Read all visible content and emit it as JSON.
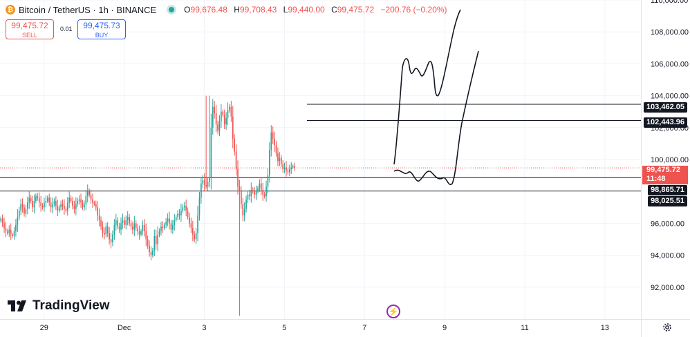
{
  "header": {
    "symbol": "Bitcoin / TetherUS · 1h · BINANCE",
    "ohlc": {
      "o_label": "O",
      "o": "99,676.48",
      "h_label": "H",
      "h": "99,708.43",
      "l_label": "L",
      "l": "99,440.00",
      "c_label": "C",
      "c": "99,475.72",
      "change": "−200.76 (−0.20%)"
    }
  },
  "trade": {
    "sell_price": "99,475.72",
    "sell_label": "SELL",
    "spread": "0.01",
    "buy_price": "99,475.73",
    "buy_label": "BUY"
  },
  "logo": "TradingView",
  "colors": {
    "up": "#26a69a",
    "down": "#ef5350",
    "accent": "#2962ff"
  },
  "current": {
    "price": "99,475.72",
    "countdown": "11:48"
  },
  "price_lines": [
    {
      "price": 103462.05,
      "label": "103,462.05"
    },
    {
      "price": 102443.96,
      "label": "102,443.96"
    },
    {
      "price": 98865.71,
      "label": "98,865.71"
    },
    {
      "price": 98025.51,
      "label": "98,025.51"
    }
  ],
  "chart_data": {
    "type": "candlestick",
    "ylim": [
      90000,
      110000
    ],
    "y_ticks": [
      "110,000.00",
      "108,000.00",
      "106,000.00",
      "104,000.00",
      "102,000.00",
      "100,000.00",
      "96,000.00",
      "94,000.00",
      "92,000.00"
    ],
    "y_tick_values": [
      110000,
      108000,
      106000,
      104000,
      102000,
      100000,
      96000,
      94000,
      92000
    ],
    "x_ticks": [
      "29",
      "Dec",
      "3",
      "5",
      "7",
      "9",
      "11",
      "13"
    ],
    "x_tick_days": [
      -2,
      0,
      2,
      4,
      6,
      8,
      10,
      12
    ],
    "x_range_days": [
      -3.1,
      12.9
    ],
    "candles_per_day": 24,
    "start_day": -3.1,
    "current_price": 99475.72,
    "closes": [
      96300,
      96000,
      95700,
      95500,
      95400,
      95600,
      95300,
      95200,
      95500,
      95900,
      96400,
      96800,
      97200,
      97000,
      96600,
      96900,
      97300,
      97600,
      97400,
      97000,
      97400,
      97700,
      97600,
      97300,
      97100,
      97000,
      97300,
      97400,
      97600,
      97300,
      97000,
      97200,
      97400,
      97100,
      96800,
      97000,
      97200,
      97100,
      96900,
      96800,
      97300,
      97600,
      97400,
      97100,
      96900,
      97200,
      97400,
      97500,
      97300,
      97000,
      97200,
      97700,
      98000,
      97800,
      97500,
      97300,
      97200,
      97000,
      96500,
      96200,
      95800,
      95400,
      95300,
      95800,
      95400,
      95000,
      94800,
      95300,
      95900,
      96200,
      95800,
      95600,
      96000,
      96200,
      95900,
      96200,
      96400,
      96000,
      95800,
      95600,
      96000,
      95700,
      95500,
      95300,
      95500,
      95900,
      95500,
      95000,
      94600,
      94200,
      94000,
      94300,
      95200,
      94700,
      95300,
      95500,
      95800,
      95700,
      95900,
      96100,
      96300,
      96000,
      95600,
      95900,
      96200,
      96400,
      96600,
      96500,
      96800,
      97000,
      97100,
      96800,
      96400,
      96000,
      95700,
      95300,
      95000,
      95400,
      96500,
      97600,
      98500,
      98700,
      98400,
      98300,
      98600,
      98900,
      102000,
      103300,
      102900,
      102200,
      101800,
      102400,
      103000,
      102800,
      102200,
      102600,
      103100,
      103300,
      102700,
      101300,
      100500,
      99400,
      98300,
      98000,
      97200,
      96500,
      96900,
      97500,
      97800,
      97700,
      98100,
      98000,
      97800,
      98000,
      98200,
      98500,
      98100,
      97800,
      97700,
      98300,
      99000,
      100600,
      101700,
      101300,
      100900,
      100400,
      99900,
      100100,
      99700,
      99400,
      99500,
      99300,
      99200,
      99400,
      99500,
      99600,
      99475.72
    ]
  }
}
